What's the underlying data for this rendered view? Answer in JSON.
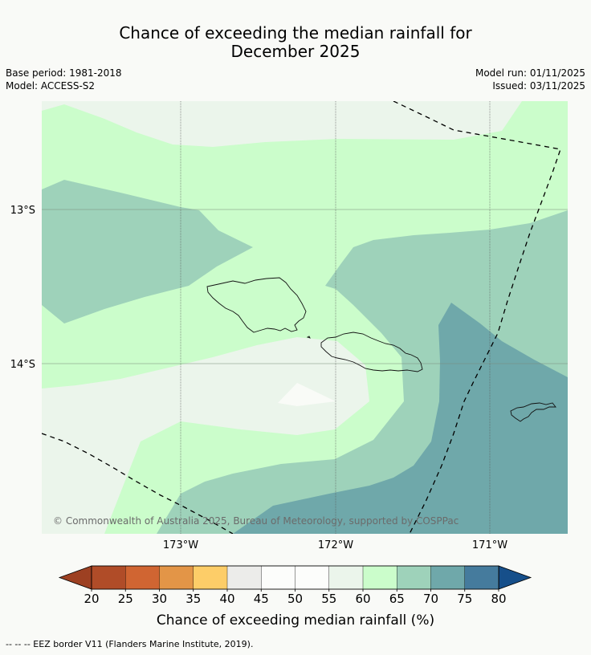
{
  "title": {
    "line1": "Chance of exceeding the median rainfall for",
    "line2": "December 2025"
  },
  "meta_left": {
    "base_period": "Base period: 1981-2018",
    "model": "Model: ACCESS-S2"
  },
  "meta_right": {
    "model_run": "Model run: 01/11/2025",
    "issued": "Issued: 03/11/2025"
  },
  "map": {
    "lat_labels": [
      "13°S",
      "14°S"
    ],
    "lon_labels": [
      "173°W",
      "172°W",
      "171°W"
    ],
    "copyright": "© Commonwealth of Australia 2025, Bureau of Meteorology, supported by COSPPac",
    "layers": [
      {
        "name": "55-60",
        "color": "#ebf5eb"
      },
      {
        "name": "60-65",
        "color": "#cbfdcb"
      },
      {
        "name": "65-70",
        "color": "#9ed2ba"
      },
      {
        "name": "70-75",
        "color": "#6fa8aa"
      },
      {
        "name": "50-55",
        "color": "#f9fbf7"
      }
    ]
  },
  "colorbar": {
    "title": "Chance of exceeding median rainfall (%)",
    "ticks": [
      "20",
      "25",
      "30",
      "35",
      "40",
      "45",
      "50",
      "55",
      "60",
      "65",
      "70",
      "75",
      "80"
    ],
    "colors": [
      "#b04c28",
      "#d06532",
      "#e39547",
      "#fdcd68",
      "#ececea",
      "#fcfdfb",
      "#fcfdfb",
      "#ebf5eb",
      "#cbfdcb",
      "#9ed2ba",
      "#6fa8aa",
      "#457b9d"
    ],
    "under_color": "#9d4022",
    "over_color": "#164f8a"
  },
  "footnote": "--  --  -- EEZ border V11 (Flanders Marine Institute, 2019)."
}
